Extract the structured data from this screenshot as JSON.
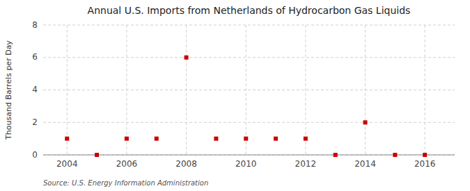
{
  "chart_data": {
    "type": "scatter",
    "title": "Annual U.S. Imports from Netherlands of Hydrocarbon Gas Liquids",
    "y_label": "Thousand Barrels per Day",
    "source": "Source: U.S. Energy Information Administration",
    "x": [
      2004,
      2005,
      2006,
      2007,
      2008,
      2009,
      2010,
      2011,
      2012,
      2013,
      2014,
      2015,
      2016
    ],
    "values": [
      1,
      0,
      1,
      1,
      6,
      1,
      1,
      1,
      1,
      0,
      2,
      0,
      0
    ],
    "color": "#cc0000",
    "marker": "square",
    "xlim": [
      2003.2,
      2017.0
    ],
    "ylim": [
      0,
      8
    ],
    "xticks": [
      2004,
      2006,
      2008,
      2010,
      2012,
      2014,
      2016
    ],
    "yticks": [
      0,
      2,
      4,
      6,
      8
    ],
    "grid": true
  }
}
